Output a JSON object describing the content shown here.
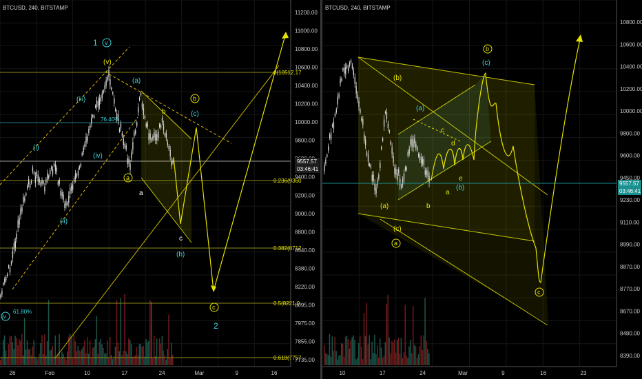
{
  "colors": {
    "bg": "#000000",
    "grid": "#161616",
    "axis_text": "#c8c8c8",
    "candle": "#d9d9d9",
    "yellow": "#e6e200",
    "orange_wave": "#f0a800",
    "cyan": "#3fd0d8",
    "vol_up": "#1e5e52",
    "vol_down": "#7a1e1e",
    "fib_line": "#8a8a1a",
    "price_tag_bg": "#1d1d1d",
    "teal_tag": "#1a8f8f"
  },
  "left": {
    "header": "BTCUSD, 240, BITSTAMP",
    "y_ticks": [
      "11200.00",
      "11000.00",
      "10800.00",
      "10600.00",
      "10400.00",
      "10200.00",
      "10000.00",
      "9800.00",
      "9600.00",
      "9400.00",
      "9200.00",
      "9000.00",
      "8800.00",
      "8540.00",
      "8380.00",
      "8220.00",
      "8095.00",
      "7975.00",
      "7855.00",
      "7735.00"
    ],
    "x_ticks": [
      "26",
      "Feb",
      "10",
      "17",
      "24",
      "Mar",
      "9",
      "16"
    ],
    "price_tag": "9557.57",
    "time_tag": "03:46:41",
    "fibs": [
      {
        "label": "0(10512.17",
        "value": 10512.17
      },
      {
        "label": "0.236(9360",
        "value": 9360
      },
      {
        "label": "0.382(8712",
        "value": 8712
      },
      {
        "label": "0.5(8221.0",
        "value": 8221
      },
      {
        "label": "0.618(7757",
        "value": 7757
      }
    ],
    "retr_labels": [
      "76.40%",
      "61.80%"
    ],
    "wave_labels_cyan": [
      "1",
      "v",
      "(i)",
      "(ii)",
      "(iii)",
      "(iv)",
      "(a)",
      "(b)",
      "(c)",
      "2",
      "iv"
    ],
    "wave_labels_yellow": [
      "(v)",
      "a",
      "b",
      "c",
      "a",
      "b",
      "c"
    ]
  },
  "right": {
    "header": "BTCUSD, 240, BITSTAMP",
    "y_ticks": [
      "10800.00",
      "10600.00",
      "10400.00",
      "10200.00",
      "10000.00",
      "9800.00",
      "9600.00",
      "9450.00",
      "9230.00",
      "9110.00",
      "8990.00",
      "8870.00",
      "8770.00",
      "8670.00",
      "8480.00",
      "8390.00"
    ],
    "x_ticks": [
      "10",
      "17",
      "24",
      "Mar",
      "9",
      "16",
      "23"
    ],
    "price_tag": "9557.57",
    "time_tag": "03:46:41",
    "wave_labels_yellow": [
      "(b)",
      "(a)",
      "(c)",
      "a",
      "b",
      "c",
      "a",
      "b",
      "c",
      "d",
      "e",
      "b",
      "c"
    ],
    "wave_labels_cyan": [
      "(a)",
      "(b)",
      "(c)"
    ]
  }
}
